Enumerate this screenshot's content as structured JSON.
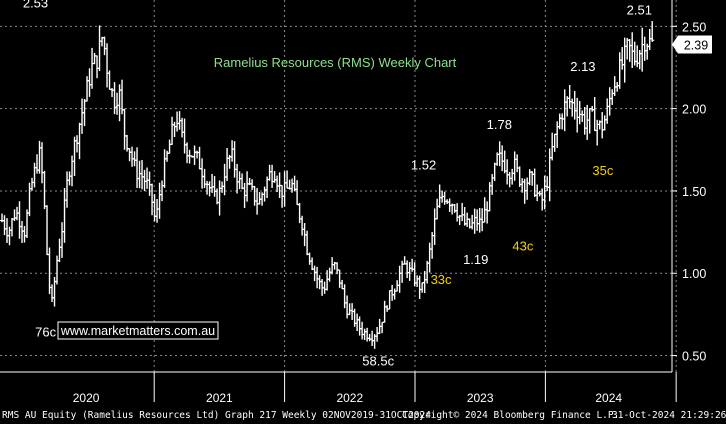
{
  "chart_data": {
    "type": "ohlc",
    "title": "Ramelius Resources (RMS) Weekly Chart",
    "watermark": "www.marketmatters.com.au",
    "y_ticks": [
      "0.50",
      "1.00",
      "1.50",
      "2.00",
      "2.50"
    ],
    "y_tick_values": [
      0.5,
      1.0,
      1.5,
      2.0,
      2.5
    ],
    "ylim": [
      0.4,
      2.66
    ],
    "x_tick_labels": [
      "2020",
      "2021",
      "2022",
      "2023",
      "2024"
    ],
    "x_range": [
      "2019-11-02",
      "2024-10-31"
    ],
    "last_price": "2.39",
    "annotations": [
      {
        "text": "2.53",
        "date": "2020-02-15",
        "value": 2.53,
        "color": "#ffffff"
      },
      {
        "text": "76c",
        "date": "2020-03-20",
        "value": 0.76,
        "color": "#ffffff"
      },
      {
        "text": "58.5c",
        "date": "2022-09-20",
        "value": 0.585,
        "color": "#ffffff"
      },
      {
        "text": "1.52",
        "date": "2023-01-25",
        "value": 1.52,
        "color": "#ffffff"
      },
      {
        "text": "33c",
        "date": "2023-03-15",
        "value": 1.19,
        "color": "#f5d300"
      },
      {
        "text": "1.19",
        "date": "2023-06-20",
        "value": 1.19,
        "color": "#ffffff"
      },
      {
        "text": "1.78",
        "date": "2023-08-25",
        "value": 1.78,
        "color": "#ffffff"
      },
      {
        "text": "43c",
        "date": "2023-10-30",
        "value": 1.35,
        "color": "#f5d300"
      },
      {
        "text": "2.13",
        "date": "2024-04-15",
        "value": 2.13,
        "color": "#ffffff"
      },
      {
        "text": "35c",
        "date": "2024-06-10",
        "value": 1.78,
        "color": "#f5d300"
      },
      {
        "text": "2.51",
        "date": "2024-10-01",
        "value": 2.51,
        "color": "#ffffff"
      }
    ],
    "series": [
      {
        "type": "weekly-ohlc",
        "points": [
          [
            "2019-11-02",
            1.32
          ],
          [
            "2019-11-20",
            1.25
          ],
          [
            "2019-12-10",
            1.38
          ],
          [
            "2020-01-05",
            1.25
          ],
          [
            "2020-01-20",
            1.5
          ],
          [
            "2020-02-05",
            1.65
          ],
          [
            "2020-02-15",
            1.72
          ],
          [
            "2020-02-25",
            1.55
          ],
          [
            "2020-03-10",
            1.0
          ],
          [
            "2020-03-20",
            0.8
          ],
          [
            "2020-04-05",
            1.1
          ],
          [
            "2020-04-20",
            1.3
          ],
          [
            "2020-05-05",
            1.6
          ],
          [
            "2020-05-20",
            1.75
          ],
          [
            "2020-06-10",
            1.95
          ],
          [
            "2020-06-25",
            2.1
          ],
          [
            "2020-07-10",
            2.25
          ],
          [
            "2020-07-25",
            2.3
          ],
          [
            "2020-08-10",
            2.45
          ],
          [
            "2020-08-25",
            2.2
          ],
          [
            "2020-09-10",
            2.05
          ],
          [
            "2020-09-25",
            2.1
          ],
          [
            "2020-10-10",
            1.85
          ],
          [
            "2020-10-25",
            1.75
          ],
          [
            "2020-11-10",
            1.62
          ],
          [
            "2020-11-25",
            1.6
          ],
          [
            "2020-12-10",
            1.55
          ],
          [
            "2020-12-25",
            1.45
          ],
          [
            "2021-01-05",
            1.3
          ],
          [
            "2021-01-20",
            1.55
          ],
          [
            "2021-02-05",
            1.7
          ],
          [
            "2021-02-20",
            1.85
          ],
          [
            "2021-03-05",
            1.95
          ],
          [
            "2021-03-20",
            1.82
          ],
          [
            "2021-04-05",
            1.75
          ],
          [
            "2021-04-20",
            1.72
          ],
          [
            "2021-05-05",
            1.68
          ],
          [
            "2021-05-20",
            1.6
          ],
          [
            "2021-06-05",
            1.52
          ],
          [
            "2021-06-20",
            1.45
          ],
          [
            "2021-07-05",
            1.5
          ],
          [
            "2021-07-20",
            1.65
          ],
          [
            "2021-08-05",
            1.72
          ],
          [
            "2021-08-20",
            1.6
          ],
          [
            "2021-09-05",
            1.5
          ],
          [
            "2021-09-20",
            1.52
          ],
          [
            "2021-10-05",
            1.48
          ],
          [
            "2021-10-20",
            1.42
          ],
          [
            "2021-11-05",
            1.52
          ],
          [
            "2021-11-20",
            1.6
          ],
          [
            "2021-12-05",
            1.62
          ],
          [
            "2021-12-20",
            1.5
          ],
          [
            "2022-01-05",
            1.5
          ],
          [
            "2022-01-20",
            1.55
          ],
          [
            "2022-02-05",
            1.4
          ],
          [
            "2022-02-20",
            1.3
          ],
          [
            "2022-03-05",
            1.15
          ],
          [
            "2022-03-20",
            1.05
          ],
          [
            "2022-04-05",
            0.95
          ],
          [
            "2022-04-20",
            0.9
          ],
          [
            "2022-05-05",
            1.0
          ],
          [
            "2022-05-20",
            1.05
          ],
          [
            "2022-06-05",
            0.95
          ],
          [
            "2022-06-20",
            0.8
          ],
          [
            "2022-07-05",
            0.75
          ],
          [
            "2022-07-20",
            0.7
          ],
          [
            "2022-08-05",
            0.65
          ],
          [
            "2022-08-20",
            0.63
          ],
          [
            "2022-09-05",
            0.62
          ],
          [
            "2022-09-20",
            0.66
          ],
          [
            "2022-10-05",
            0.75
          ],
          [
            "2022-10-20",
            0.85
          ],
          [
            "2022-11-05",
            0.92
          ],
          [
            "2022-11-20",
            1.0
          ],
          [
            "2022-12-05",
            1.05
          ],
          [
            "2022-12-20",
            1.0
          ],
          [
            "2023-01-05",
            0.95
          ],
          [
            "2023-01-20",
            0.9
          ],
          [
            "2023-02-05",
            1.05
          ],
          [
            "2023-02-20",
            1.25
          ],
          [
            "2023-03-05",
            1.4
          ],
          [
            "2023-03-20",
            1.48
          ],
          [
            "2023-04-05",
            1.45
          ],
          [
            "2023-04-20",
            1.42
          ],
          [
            "2023-05-05",
            1.35
          ],
          [
            "2023-05-20",
            1.3
          ],
          [
            "2023-06-05",
            1.28
          ],
          [
            "2023-06-20",
            1.32
          ],
          [
            "2023-07-05",
            1.3
          ],
          [
            "2023-07-20",
            1.4
          ],
          [
            "2023-08-05",
            1.55
          ],
          [
            "2023-08-20",
            1.7
          ],
          [
            "2023-09-05",
            1.68
          ],
          [
            "2023-09-20",
            1.62
          ],
          [
            "2023-10-05",
            1.66
          ],
          [
            "2023-10-20",
            1.58
          ],
          [
            "2023-11-05",
            1.55
          ],
          [
            "2023-11-20",
            1.58
          ],
          [
            "2023-12-05",
            1.5
          ],
          [
            "2023-12-20",
            1.42
          ],
          [
            "2024-01-05",
            1.55
          ],
          [
            "2024-01-20",
            1.75
          ],
          [
            "2024-02-05",
            1.9
          ],
          [
            "2024-02-20",
            2.0
          ],
          [
            "2024-03-05",
            2.05
          ],
          [
            "2024-03-20",
            2.02
          ],
          [
            "2024-04-05",
            1.98
          ],
          [
            "2024-04-20",
            1.92
          ],
          [
            "2024-05-05",
            1.95
          ],
          [
            "2024-05-20",
            1.92
          ],
          [
            "2024-06-05",
            1.88
          ],
          [
            "2024-06-20",
            1.96
          ],
          [
            "2024-07-05",
            2.12
          ],
          [
            "2024-07-20",
            2.2
          ],
          [
            "2024-08-05",
            2.28
          ],
          [
            "2024-08-20",
            2.38
          ],
          [
            "2024-09-05",
            2.3
          ],
          [
            "2024-09-20",
            2.35
          ],
          [
            "2024-10-05",
            2.42
          ],
          [
            "2024-10-31",
            2.39
          ]
        ]
      }
    ],
    "grid": true,
    "legend": "none"
  },
  "footer": {
    "left": "RMS AU Equity (Ramelius Resources Ltd) Graph 217  Weekly 02NOV2019-31OCT2024",
    "middle": "Copyright© 2024 Bloomberg Finance L.P.",
    "right": "31-Oct-2024 21:29:26"
  },
  "colors": {
    "background": "#000000",
    "bars": "#ffffff",
    "grid": "#8a8a8a",
    "title": "#8ee08e",
    "watermark_border": "#ffffff",
    "highlight": "#f5d300"
  }
}
